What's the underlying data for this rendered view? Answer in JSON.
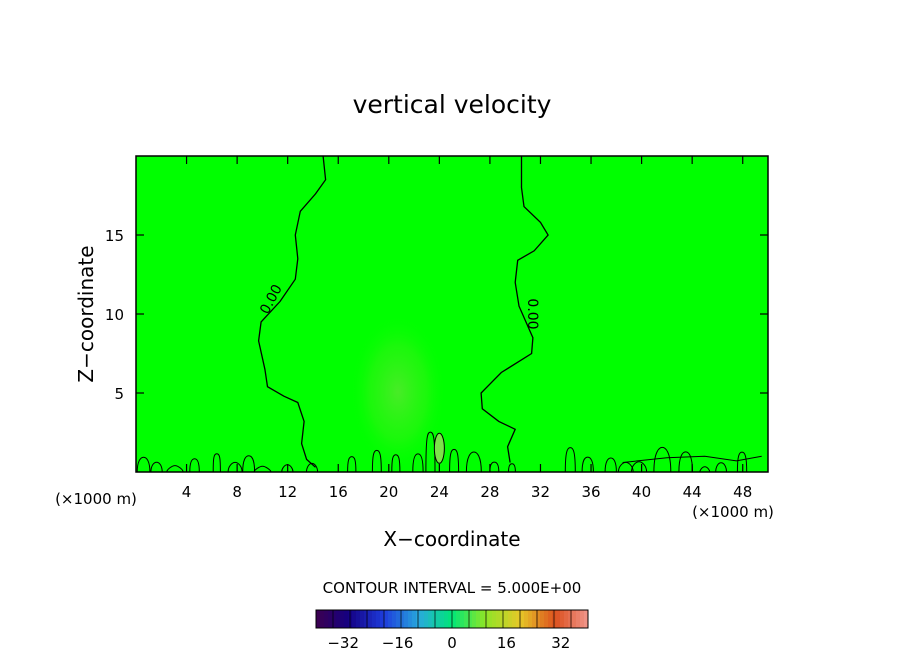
{
  "chart_data": {
    "type": "contour",
    "title": "vertical velocity",
    "xlabel": "X−coordinate",
    "ylabel": "Z−coordinate",
    "x_units": "(×1000 m)",
    "y_units": "(×1000 m)",
    "xlim": [
      0,
      50
    ],
    "ylim": [
      0,
      20
    ],
    "x_ticks": [
      4,
      8,
      12,
      16,
      20,
      24,
      28,
      32,
      36,
      40,
      44,
      48
    ],
    "y_ticks": [
      5,
      10,
      15
    ],
    "contour_label": "0.00",
    "contour_interval_text": "CONTOUR INTERVAL = 5.000E+00",
    "colorbar": {
      "min": -40,
      "max": 40,
      "ticks": [
        -32,
        -16,
        0,
        16,
        32
      ],
      "levels": [
        -40,
        -35,
        -30,
        -25,
        -20,
        -15,
        -10,
        -5,
        0,
        5,
        10,
        15,
        20,
        25,
        30,
        35,
        40
      ]
    },
    "field_color": "#00ff00",
    "contour_left": [
      [
        14.8,
        20.0
      ],
      [
        15.0,
        18.5
      ],
      [
        14.2,
        17.6
      ],
      [
        13.0,
        16.5
      ],
      [
        12.6,
        15.0
      ],
      [
        12.8,
        13.5
      ],
      [
        12.6,
        12.2
      ],
      [
        11.4,
        10.8
      ],
      [
        9.9,
        9.5
      ],
      [
        9.7,
        8.3
      ],
      [
        10.2,
        6.5
      ],
      [
        10.4,
        5.4
      ],
      [
        11.7,
        4.8
      ],
      [
        12.8,
        4.4
      ],
      [
        13.3,
        3.2
      ],
      [
        13.1,
        1.8
      ],
      [
        13.5,
        0.8
      ],
      [
        14.2,
        0.3
      ]
    ],
    "contour_right": [
      [
        30.5,
        20.0
      ],
      [
        30.5,
        18.0
      ],
      [
        30.7,
        16.8
      ],
      [
        32.0,
        15.8
      ],
      [
        32.6,
        15.0
      ],
      [
        31.5,
        14.0
      ],
      [
        30.2,
        13.4
      ],
      [
        30.0,
        12.0
      ],
      [
        30.3,
        10.5
      ],
      [
        31.4,
        8.5
      ],
      [
        31.3,
        7.5
      ],
      [
        28.9,
        6.3
      ],
      [
        27.3,
        5.0
      ],
      [
        27.4,
        4.0
      ],
      [
        28.7,
        3.2
      ],
      [
        30.0,
        2.7
      ],
      [
        29.4,
        1.6
      ],
      [
        29.6,
        0.6
      ]
    ]
  }
}
